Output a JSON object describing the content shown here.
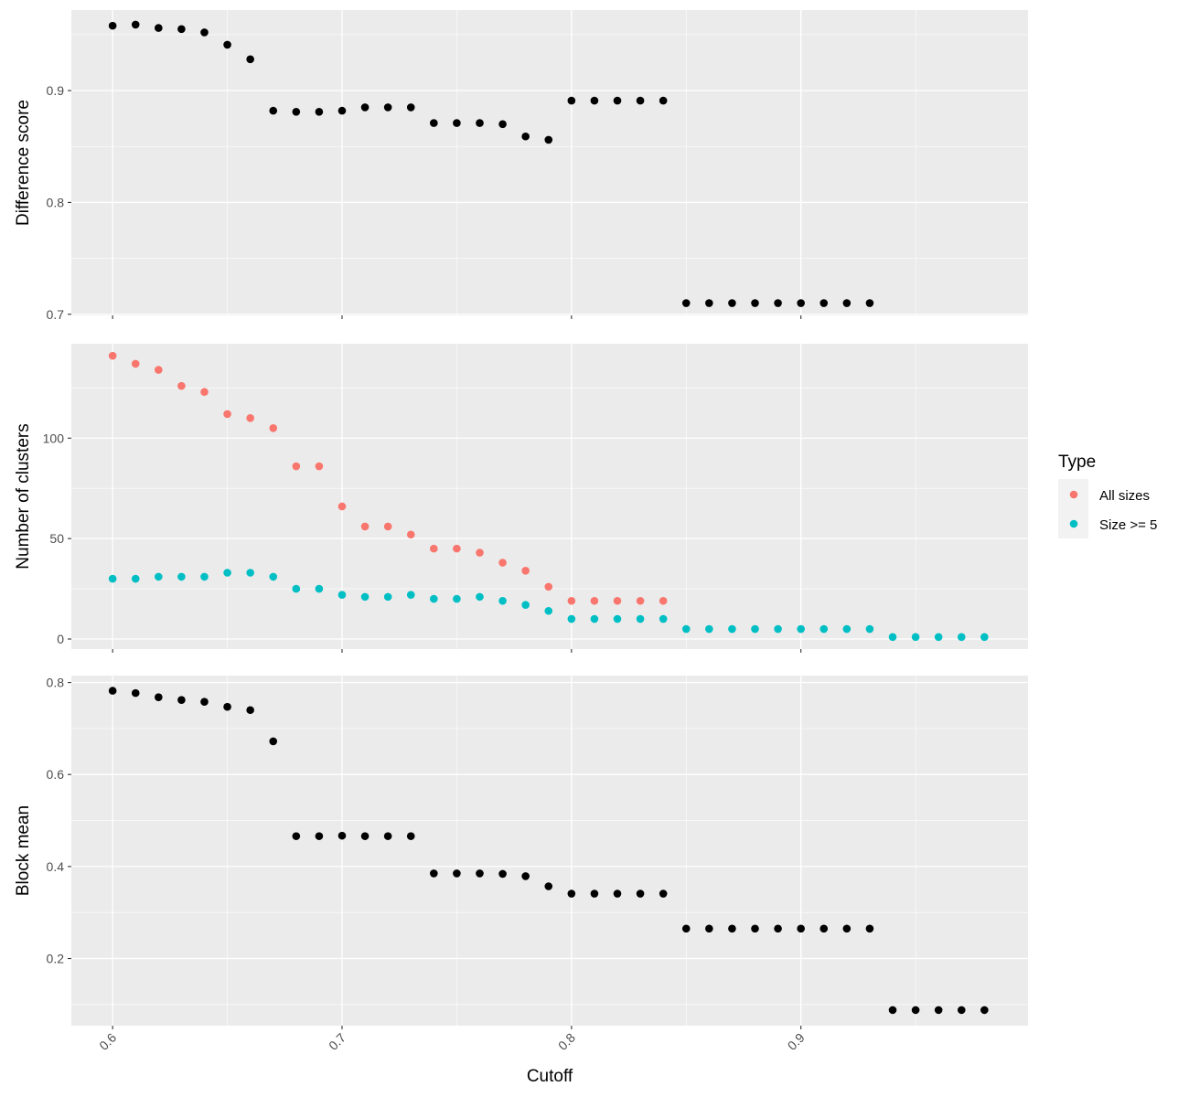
{
  "chart_data": {
    "type": "scatter",
    "xlabel": "Cutoff",
    "xlim": [
      0.582,
      0.999
    ],
    "xticks": [
      0.6,
      0.7,
      0.8,
      0.9
    ],
    "xtick_labels": [
      "0.6",
      "0.7",
      "0.8",
      "0.9"
    ],
    "legend": {
      "title": "Type",
      "placement": "right",
      "items": [
        {
          "label": "All sizes",
          "color": "#F8766D"
        },
        {
          "label": "Size >= 5",
          "color": "#00BFC4"
        }
      ]
    },
    "panels": [
      {
        "ylabel": "Difference score",
        "ylim": [
          0.699,
          0.972
        ],
        "yticks": [
          0.7,
          0.8,
          0.9
        ],
        "ytick_labels": [
          "0.7",
          "0.8",
          "0.9"
        ],
        "series": [
          {
            "color": "#000000",
            "x": [
              0.6,
              0.61,
              0.62,
              0.63,
              0.64,
              0.65,
              0.66,
              0.67,
              0.68,
              0.69,
              0.7,
              0.71,
              0.72,
              0.73,
              0.74,
              0.75,
              0.76,
              0.77,
              0.78,
              0.79,
              0.8,
              0.81,
              0.82,
              0.83,
              0.84,
              0.85,
              0.86,
              0.87,
              0.88,
              0.89,
              0.9,
              0.91,
              0.92,
              0.93
            ],
            "y": [
              0.958,
              0.959,
              0.956,
              0.955,
              0.952,
              0.941,
              0.928,
              0.882,
              0.881,
              0.881,
              0.882,
              0.885,
              0.885,
              0.885,
              0.871,
              0.871,
              0.871,
              0.87,
              0.859,
              0.856,
              0.891,
              0.891,
              0.891,
              0.891,
              0.891,
              0.71,
              0.71,
              0.71,
              0.71,
              0.71,
              0.71,
              0.71,
              0.71,
              0.71
            ]
          }
        ]
      },
      {
        "ylabel": "Number of clusters",
        "ylim": [
          -5,
          147
        ],
        "yticks": [
          0,
          50,
          100
        ],
        "ytick_labels": [
          "0",
          "50",
          "100"
        ],
        "series": [
          {
            "name": "All sizes",
            "color": "#F8766D",
            "x": [
              0.6,
              0.61,
              0.62,
              0.63,
              0.64,
              0.65,
              0.66,
              0.67,
              0.68,
              0.69,
              0.7,
              0.71,
              0.72,
              0.73,
              0.74,
              0.75,
              0.76,
              0.77,
              0.78,
              0.79,
              0.8,
              0.81,
              0.82,
              0.83,
              0.84
            ],
            "y": [
              141,
              137,
              134,
              126,
              123,
              112,
              110,
              105,
              86,
              86,
              66,
              56,
              56,
              52,
              45,
              45,
              43,
              38,
              34,
              26,
              19,
              19,
              19,
              19,
              19
            ]
          },
          {
            "name": "Size >= 5",
            "color": "#00BFC4",
            "x": [
              0.6,
              0.61,
              0.62,
              0.63,
              0.64,
              0.65,
              0.66,
              0.67,
              0.68,
              0.69,
              0.7,
              0.71,
              0.72,
              0.73,
              0.74,
              0.75,
              0.76,
              0.77,
              0.78,
              0.79,
              0.8,
              0.81,
              0.82,
              0.83,
              0.84,
              0.85,
              0.86,
              0.87,
              0.88,
              0.89,
              0.9,
              0.91,
              0.92,
              0.93,
              0.94,
              0.95,
              0.96,
              0.97,
              0.98
            ],
            "y": [
              30,
              30,
              31,
              31,
              31,
              33,
              33,
              31,
              25,
              25,
              22,
              21,
              21,
              22,
              20,
              20,
              21,
              19,
              17,
              14,
              10,
              10,
              10,
              10,
              10,
              5,
              5,
              5,
              5,
              5,
              5,
              5,
              5,
              5,
              1,
              1,
              1,
              1,
              1
            ]
          }
        ]
      },
      {
        "ylabel": "Block mean",
        "ylim": [
          0.054,
          0.815
        ],
        "yticks": [
          0.2,
          0.4,
          0.6,
          0.8
        ],
        "ytick_labels": [
          "0.2",
          "0.4",
          "0.6",
          "0.8"
        ],
        "series": [
          {
            "color": "#000000",
            "x": [
              0.6,
              0.61,
              0.62,
              0.63,
              0.64,
              0.65,
              0.66,
              0.67,
              0.68,
              0.69,
              0.7,
              0.71,
              0.72,
              0.73,
              0.74,
              0.75,
              0.76,
              0.77,
              0.78,
              0.79,
              0.8,
              0.81,
              0.82,
              0.83,
              0.84,
              0.85,
              0.86,
              0.87,
              0.88,
              0.89,
              0.9,
              0.91,
              0.92,
              0.93,
              0.94,
              0.95,
              0.96,
              0.97,
              0.98
            ],
            "y": [
              0.782,
              0.777,
              0.768,
              0.762,
              0.758,
              0.747,
              0.74,
              0.672,
              0.466,
              0.466,
              0.467,
              0.466,
              0.466,
              0.466,
              0.385,
              0.385,
              0.385,
              0.384,
              0.379,
              0.357,
              0.341,
              0.341,
              0.341,
              0.341,
              0.341,
              0.265,
              0.265,
              0.265,
              0.265,
              0.265,
              0.265,
              0.265,
              0.265,
              0.265,
              0.088,
              0.088,
              0.088,
              0.088,
              0.088
            ]
          }
        ]
      }
    ]
  }
}
